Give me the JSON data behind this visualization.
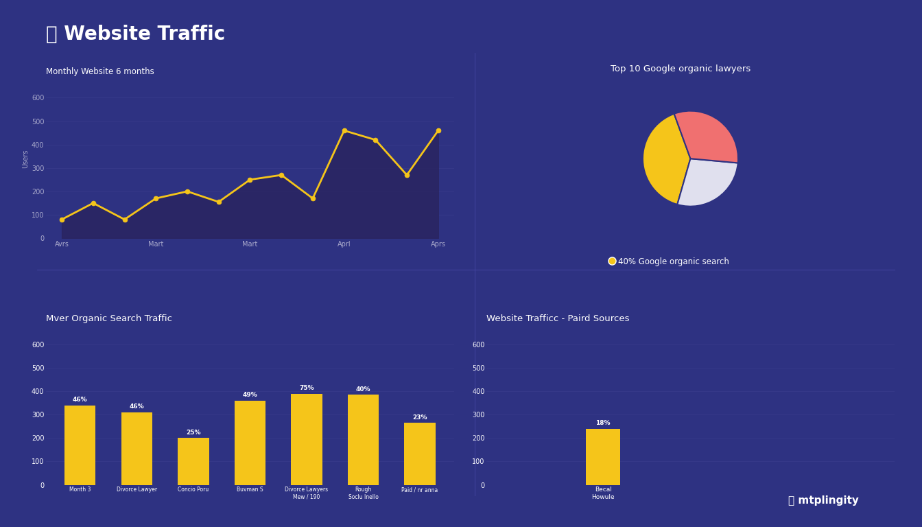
{
  "bg_color": "#2e3282",
  "panel_bg": "#2e3282",
  "title": "Website Traffic",
  "title_color": "#ffffff",
  "title_fontsize": 20,
  "line_chart": {
    "subtitle": "Monthly Website 6 months",
    "y_values": [
      80,
      150,
      80,
      170,
      200,
      155,
      250,
      270,
      170,
      460,
      420,
      270,
      460
    ],
    "line_color": "#f5c51a",
    "fill_color": "#2a2560",
    "marker_color": "#f5c51a",
    "y_label": "Users",
    "y_ticks": [
      0,
      100,
      200,
      300,
      400,
      500,
      600
    ],
    "x_tick_positions": [
      0,
      3,
      6,
      9,
      12
    ],
    "x_tick_labels": [
      "Avrs",
      "Mart",
      "Mart",
      "Aprl",
      "Aprs"
    ],
    "grid_color": "#4a4a9a",
    "text_color": "#aaaacc"
  },
  "pie_chart": {
    "title": "Top 10 Google organic lawyers",
    "slices": [
      40,
      28,
      32
    ],
    "colors": [
      "#f5c51a",
      "#e0e0ee",
      "#f07070"
    ],
    "start_angle": 110,
    "legend_label": "40% Google organic search",
    "legend_color": "#f5c51a",
    "text_color": "#ffffff"
  },
  "bar_chart": {
    "title": "Mver Organic Search Traffic",
    "categories": [
      "Month 3",
      "Divorce Lawyer",
      "Concio Poru",
      "Buvman S",
      "Divorce Lawyers\nMew / 190",
      "Rough\nSoclu Inello",
      "Paid / nr anna"
    ],
    "values": [
      340,
      310,
      200,
      360,
      390,
      385,
      265
    ],
    "percentages": [
      "46%",
      "46%",
      "25%",
      "49%",
      "75%",
      "40%",
      "23%"
    ],
    "bar_color": "#f5c51a",
    "y_ticks": [
      0,
      100,
      200,
      300,
      400,
      500,
      600
    ],
    "text_color": "#ffffff",
    "grid_color": "#4a4a9a"
  },
  "bottom_right": {
    "title": "Website Trafficc - Paird Sources",
    "categories": [
      "Becal\nHowule"
    ],
    "values": [
      240
    ],
    "percentages": [
      "18%"
    ],
    "bar_color": "#f5c51a",
    "y_ticks": [
      0,
      100,
      200,
      300,
      400,
      500,
      600
    ],
    "text_color": "#ffffff",
    "grid_color": "#4a4a9a"
  },
  "divider_color": "#4a4aaa",
  "footer_text": "mtplingity"
}
